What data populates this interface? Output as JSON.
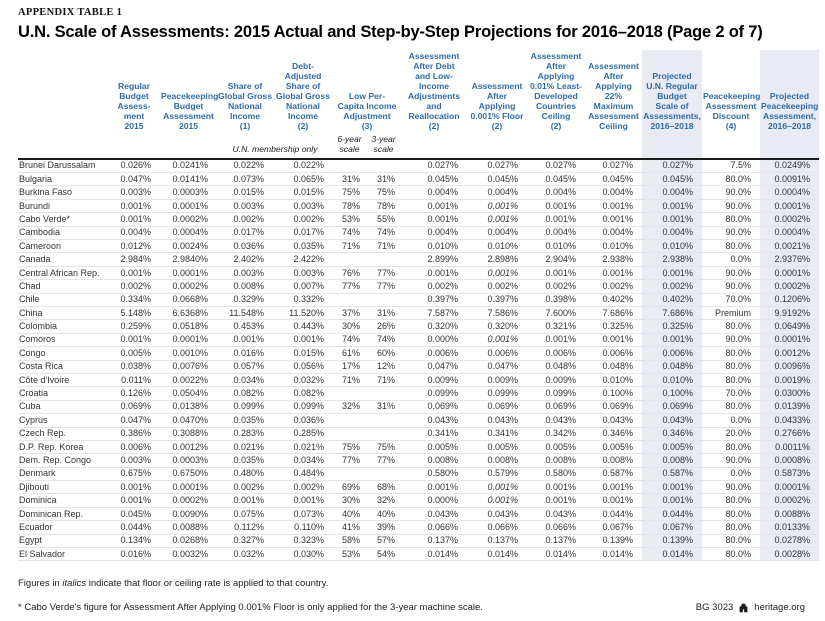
{
  "meta": {
    "kicker": "APPENDIX TABLE 1",
    "title": "U.N. Scale of Assessments: 2015 Actual and Step-by-Step Projections for 2016–2018 (Page 2 of 7)"
  },
  "colors": {
    "header_blue": "#2e6ca6",
    "column_highlight": "#e8ebf4",
    "row_rule": "#e4e4e6",
    "body_text": "#333333"
  },
  "table": {
    "header_rows": [
      [
        {
          "t": "",
          "cls": "country",
          "rs": 2,
          "n": "column-header-country"
        },
        {
          "t": "Regular\nBudget\nAssess-\nment\n2015",
          "n": "column-header-regular-budget-2015"
        },
        {
          "t": "Peacekeeping\nBudget\nAssessment\n2015",
          "n": "column-header-peacekeeping-budget-2015"
        },
        {
          "t": "Share of\nGlobal Gross\nNational\nIncome\n(1)",
          "n": "column-header-share-gni"
        },
        {
          "t": "Debt-\nAdjusted\nShare of\nGlobal Gross\nNational\nIncome\n(2)",
          "n": "column-header-debt-adjusted-share-gni"
        },
        {
          "t": "Low Per-\nCapita Income\nAdjustment\n(3)",
          "cs": 2,
          "n": "column-header-low-per-capita-income-adjustment"
        },
        {
          "t": "Assessment\nAfter Debt\nand Low-\nIncome\nAdjustments\nand\nReallocation\n(2)",
          "n": "column-header-assessment-after-debt-low-income"
        },
        {
          "t": "Assessment\nAfter\nApplying\n0.001% Floor\n(2)",
          "n": "column-header-assessment-after-floor"
        },
        {
          "t": "Assessment\nAfter\nApplying\n0.01% Least-\nDeveloped\nCountries\nCeiling\n(2)",
          "n": "column-header-assessment-after-ldc-ceiling"
        },
        {
          "t": "Assessment\nAfter\nApplying\n22%\nMaximum\nAssessment\nCeiling",
          "n": "column-header-assessment-after-22pct-ceiling"
        },
        {
          "t": "Projected\nU.N. Regular\nBudget\nScale of\nAssessments,\n2016–2018",
          "cls": "hl",
          "n": "column-header-projected-un-regular-budget"
        },
        {
          "t": "Peacekeeping\nAssessment\nDiscount\n(4)",
          "n": "column-header-peacekeeping-assessment-discount"
        },
        {
          "t": "Projected\nPeacekeeping\nAssessment,\n2016–2018",
          "cls": "hl",
          "n": "column-header-projected-peacekeeping-assessment"
        }
      ],
      [
        {
          "t": "",
          "n": "subheader-blank"
        },
        {
          "t": "",
          "n": "subheader-blank"
        },
        {
          "t": "U.N. membership only",
          "cs": 2,
          "n": "subheader-un-membership-only"
        },
        {
          "t": "6-year\nscale",
          "n": "subheader-6-year-scale"
        },
        {
          "t": "3-year\nscale",
          "n": "subheader-3-year-scale"
        },
        {
          "t": "",
          "n": "subheader-blank"
        },
        {
          "t": "",
          "n": "subheader-blank"
        },
        {
          "t": "",
          "n": "subheader-blank"
        },
        {
          "t": "",
          "n": "subheader-blank"
        },
        {
          "t": "",
          "cls": "hl",
          "n": "subheader-blank"
        },
        {
          "t": "",
          "n": "subheader-blank"
        },
        {
          "t": "",
          "cls": "hl",
          "n": "subheader-blank"
        }
      ]
    ],
    "rows": [
      {
        "c": "Brunei Darussalam",
        "v": [
          "0.026%",
          "0.0241%",
          "0.022%",
          "0.022%",
          "",
          "",
          "0.027%",
          "0.027%",
          "0.027%",
          "0.027%",
          "0.027%",
          "7.5%",
          "0.0249%"
        ]
      },
      {
        "c": "Bulgaria",
        "v": [
          "0.047%",
          "0.0141%",
          "0.073%",
          "0.065%",
          "31%",
          "31%",
          "0.045%",
          "0.045%",
          "0.045%",
          "0.045%",
          "0.045%",
          "80.0%",
          "0.0091%"
        ]
      },
      {
        "c": "Burkina Faso",
        "v": [
          "0.003%",
          "0.0003%",
          "0.015%",
          "0.015%",
          "75%",
          "75%",
          "0.004%",
          "0.004%",
          "0.004%",
          "0.004%",
          "0.004%",
          "90.0%",
          "0.0004%"
        ]
      },
      {
        "c": "Burundi",
        "v": [
          "0.001%",
          "0.0001%",
          "0.003%",
          "0.003%",
          "78%",
          "78%",
          "0.001%",
          "0.001%",
          "0.001%",
          "0.001%",
          "0.001%",
          "90.0%",
          "0.0001%"
        ],
        "it": [
          7
        ]
      },
      {
        "c": "Cabo Verde*",
        "v": [
          "0.001%",
          "0.0002%",
          "0.002%",
          "0.002%",
          "53%",
          "55%",
          "0.001%",
          "0.001%",
          "0.001%",
          "0.001%",
          "0.001%",
          "80.0%",
          "0.0002%"
        ],
        "it": [
          7
        ]
      },
      {
        "c": "Cambodia",
        "v": [
          "0.004%",
          "0.0004%",
          "0.017%",
          "0.017%",
          "74%",
          "74%",
          "0.004%",
          "0.004%",
          "0.004%",
          "0.004%",
          "0.004%",
          "90.0%",
          "0.0004%"
        ]
      },
      {
        "c": "Cameroon",
        "v": [
          "0.012%",
          "0.0024%",
          "0.036%",
          "0.035%",
          "71%",
          "71%",
          "0.010%",
          "0.010%",
          "0.010%",
          "0.010%",
          "0.010%",
          "80.0%",
          "0.0021%"
        ]
      },
      {
        "c": "Canada",
        "v": [
          "2.984%",
          "2.9840%",
          "2.402%",
          "2.422%",
          "",
          "",
          "2.899%",
          "2.898%",
          "2.904%",
          "2.938%",
          "2.938%",
          "0.0%",
          "2.9376%"
        ]
      },
      {
        "c": "Central African Rep.",
        "v": [
          "0.001%",
          "0.0001%",
          "0.003%",
          "0.003%",
          "76%",
          "77%",
          "0.001%",
          "0.001%",
          "0.001%",
          "0.001%",
          "0.001%",
          "90.0%",
          "0.0001%"
        ],
        "it": [
          7
        ]
      },
      {
        "c": "Chad",
        "v": [
          "0.002%",
          "0.0002%",
          "0.008%",
          "0.007%",
          "77%",
          "77%",
          "0.002%",
          "0.002%",
          "0.002%",
          "0.002%",
          "0.002%",
          "90.0%",
          "0.0002%"
        ]
      },
      {
        "c": "Chile",
        "v": [
          "0.334%",
          "0.0668%",
          "0.329%",
          "0.332%",
          "",
          "",
          "0.397%",
          "0.397%",
          "0.398%",
          "0.402%",
          "0.402%",
          "70.0%",
          "0.1206%"
        ]
      },
      {
        "c": "China",
        "v": [
          "5.148%",
          "6.6368%",
          "11.548%",
          "11.520%",
          "37%",
          "31%",
          "7.587%",
          "7.586%",
          "7.600%",
          "7.686%",
          "7.686%",
          "Premium",
          "9.9192%"
        ]
      },
      {
        "c": "Colombia",
        "v": [
          "0.259%",
          "0.0518%",
          "0.453%",
          "0.443%",
          "30%",
          "26%",
          "0.320%",
          "0.320%",
          "0.321%",
          "0.325%",
          "0.325%",
          "80.0%",
          "0.0649%"
        ]
      },
      {
        "c": "Comoros",
        "v": [
          "0.001%",
          "0.0001%",
          "0.001%",
          "0.001%",
          "74%",
          "74%",
          "0.000%",
          "0.001%",
          "0.001%",
          "0.001%",
          "0.001%",
          "90.0%",
          "0.0001%"
        ],
        "it": [
          7
        ]
      },
      {
        "c": "Congo",
        "v": [
          "0.005%",
          "0.0010%",
          "0.016%",
          "0.015%",
          "61%",
          "60%",
          "0.006%",
          "0.006%",
          "0.006%",
          "0.006%",
          "0.006%",
          "80.0%",
          "0.0012%"
        ]
      },
      {
        "c": "Costa Rica",
        "v": [
          "0.038%",
          "0.0076%",
          "0.057%",
          "0.056%",
          "17%",
          "12%",
          "0.047%",
          "0.047%",
          "0.048%",
          "0.048%",
          "0.048%",
          "80.0%",
          "0.0096%"
        ]
      },
      {
        "c": "Côte d'Ivoire",
        "v": [
          "0.011%",
          "0.0022%",
          "0.034%",
          "0.032%",
          "71%",
          "71%",
          "0.009%",
          "0.009%",
          "0.009%",
          "0.010%",
          "0.010%",
          "80.0%",
          "0.0019%"
        ]
      },
      {
        "c": "Croatia",
        "v": [
          "0.126%",
          "0.0504%",
          "0.082%",
          "0.082%",
          "",
          "",
          "0.099%",
          "0.099%",
          "0.099%",
          "0.100%",
          "0.100%",
          "70.0%",
          "0.0300%"
        ]
      },
      {
        "c": "Cuba",
        "v": [
          "0.069%",
          "0.0138%",
          "0.099%",
          "0.099%",
          "32%",
          "31%",
          "0.069%",
          "0.069%",
          "0.069%",
          "0.069%",
          "0.069%",
          "80.0%",
          "0.0139%"
        ]
      },
      {
        "c": "Cyprus",
        "v": [
          "0.047%",
          "0.0470%",
          "0.035%",
          "0.036%",
          "",
          "",
          "0.043%",
          "0.043%",
          "0.043%",
          "0.043%",
          "0.043%",
          "0.0%",
          "0.0433%"
        ]
      },
      {
        "c": "Czech Rep.",
        "v": [
          "0.386%",
          "0.3088%",
          "0.283%",
          "0.285%",
          "",
          "",
          "0.341%",
          "0.341%",
          "0.342%",
          "0.346%",
          "0.346%",
          "20.0%",
          "0.2766%"
        ]
      },
      {
        "c": "D.P. Rep. Korea",
        "v": [
          "0.006%",
          "0.0012%",
          "0.021%",
          "0.021%",
          "75%",
          "75%",
          "0.005%",
          "0.005%",
          "0.005%",
          "0.005%",
          "0.005%",
          "80.0%",
          "0.0011%"
        ]
      },
      {
        "c": "Dem. Rep. Congo",
        "v": [
          "0.003%",
          "0.0003%",
          "0.035%",
          "0.034%",
          "77%",
          "77%",
          "0.008%",
          "0.008%",
          "0.008%",
          "0.008%",
          "0.008%",
          "90.0%",
          "0.0008%"
        ]
      },
      {
        "c": "Denmark",
        "v": [
          "0.675%",
          "0.6750%",
          "0.480%",
          "0.484%",
          "",
          "",
          "0.580%",
          "0.579%",
          "0.580%",
          "0.587%",
          "0.587%",
          "0.0%",
          "0.5873%"
        ]
      },
      {
        "c": "Djibouti",
        "v": [
          "0.001%",
          "0.0001%",
          "0.002%",
          "0.002%",
          "69%",
          "68%",
          "0.001%",
          "0.001%",
          "0.001%",
          "0.001%",
          "0.001%",
          "90.0%",
          "0.0001%"
        ],
        "it": [
          7
        ]
      },
      {
        "c": "Dominica",
        "v": [
          "0.001%",
          "0.0002%",
          "0.001%",
          "0.001%",
          "30%",
          "32%",
          "0.000%",
          "0.001%",
          "0.001%",
          "0.001%",
          "0.001%",
          "80.0%",
          "0.0002%"
        ],
        "it": [
          7
        ]
      },
      {
        "c": "Dominican Rep.",
        "v": [
          "0.045%",
          "0.0090%",
          "0.075%",
          "0.073%",
          "40%",
          "40%",
          "0.043%",
          "0.043%",
          "0.043%",
          "0.044%",
          "0.044%",
          "80.0%",
          "0.0088%"
        ]
      },
      {
        "c": "Ecuador",
        "v": [
          "0.044%",
          "0.0088%",
          "0.112%",
          "0.110%",
          "41%",
          "39%",
          "0.066%",
          "0.066%",
          "0.066%",
          "0.067%",
          "0.067%",
          "80.0%",
          "0.0133%"
        ]
      },
      {
        "c": "Egypt",
        "v": [
          "0.134%",
          "0.0268%",
          "0.327%",
          "0.323%",
          "58%",
          "57%",
          "0.137%",
          "0.137%",
          "0.137%",
          "0.139%",
          "0.139%",
          "80.0%",
          "0.0278%"
        ]
      },
      {
        "c": "El Salvador",
        "v": [
          "0.016%",
          "0.0032%",
          "0.032%",
          "0.030%",
          "53%",
          "54%",
          "0.014%",
          "0.014%",
          "0.014%",
          "0.014%",
          "0.014%",
          "80.0%",
          "0.0028%"
        ]
      }
    ]
  },
  "footnotes": {
    "italics_pre": "Figures in ",
    "italics_word": "italics",
    "italics_post": " indicate that floor or ceiling rate is applied to that country.",
    "cabo_verde": "* Cabo Verde's figure for Assessment After Applying 0.001% Floor is only applied for the 3-year machine scale."
  },
  "footer": {
    "bg_number": "BG 3023",
    "site": "heritage.org"
  }
}
